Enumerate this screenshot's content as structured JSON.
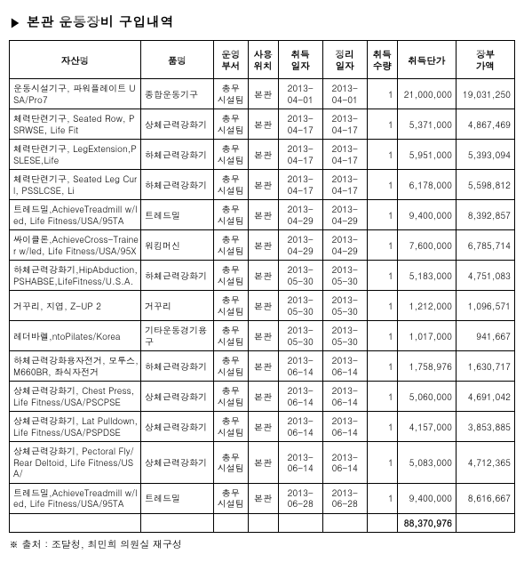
{
  "title": "본관 운동장비 구입내역",
  "marker": "▶",
  "headers": {
    "name": "자산명",
    "part": "품명",
    "dept": "운영\n부서",
    "loc": "사용\n위치",
    "acq_date": "취득\n일자",
    "sort_date": "정리\n일자",
    "qty": "취득\n수량",
    "unit_price": "취득단가",
    "book_value": "장부\n가액"
  },
  "rows": [
    {
      "name": "운동시설기구, 파워플레이트 USA/Pro7",
      "part": "종합운동기구",
      "dept": "총무\n시설팀",
      "loc": "본관",
      "d1": "2013-\n04-01",
      "d2": "2013-\n04-01",
      "qty": "1",
      "unit": "21,000,000",
      "book": "19,031,250"
    },
    {
      "name": "체력단련기구, Seated Row, PSRWSE, Life Fit",
      "part": "상체근력강화기",
      "dept": "총무\n시설팀",
      "loc": "본관",
      "d1": "2013-\n04-17",
      "d2": "2013-\n04-17",
      "qty": "1",
      "unit": "5,371,000",
      "book": "4,867,469"
    },
    {
      "name": "체력단련기구, LegExtension,PSLESE,Life",
      "part": "하체근력강화기",
      "dept": "총무\n시설팀",
      "loc": "본관",
      "d1": "2013-\n04-17",
      "d2": "2013-\n04-17",
      "qty": "1",
      "unit": "5,951,000",
      "book": "5,393,094"
    },
    {
      "name": "체력단련기구, Seated Leg Curl, PSSLCSE, Li",
      "part": "하체근력강화기",
      "dept": "총무\n시설팀",
      "loc": "본관",
      "d1": "2013-\n04-17",
      "d2": "2013-\n04-17",
      "qty": "1",
      "unit": "6,178,000",
      "book": "5,598,812"
    },
    {
      "name": "트레드밀,AchieveTreadmill w/led, Life Fitness/USA/95TA",
      "part": "트레드밀",
      "dept": "총무\n시설팀",
      "loc": "본관",
      "d1": "2013-\n04-29",
      "d2": "2013-\n04-29",
      "qty": "1",
      "unit": "9,400,000",
      "book": "8,392,857"
    },
    {
      "name": "싸이클론,AchieveCross-Trainer w/led, Life   Fitness/USA/95X",
      "part": "워킹머신",
      "dept": "총무\n시설팀",
      "loc": "본관",
      "d1": "2013-\n04-29",
      "d2": "2013-\n04-29",
      "qty": "1",
      "unit": "7,600,000",
      "book": "6,785,714"
    },
    {
      "name": "하체근력강화기,HipAbduction,PSHABSE,LifeFitness/U.S.A.",
      "part": "하체근력강화기",
      "dept": "총무\n시설팀",
      "loc": "본관",
      "d1": "2013-\n05-30",
      "d2": "2013-\n05-30",
      "qty": "1",
      "unit": "5,183,000",
      "book": "4,751,083"
    },
    {
      "name": "거꾸리, 지엽, Z-UP 2",
      "part": "거꾸리",
      "dept": "총무\n시설팀",
      "loc": "본관",
      "d1": "2013-\n05-30",
      "d2": "2013-\n05-30",
      "qty": "1",
      "unit": "1,212,000",
      "book": "1,096,571"
    },
    {
      "name": "레더바렐,ntoPilates/Korea",
      "part": "기타운동경기용구",
      "dept": "총무\n시설팀",
      "loc": "본관",
      "d1": "2013-\n05-30",
      "d2": "2013-\n05-30",
      "qty": "1",
      "unit": "1,017,000",
      "book": "941,667"
    },
    {
      "name": "하체근력강화용자전거, 모투스, M660BR, 좌식자전거",
      "part": "하체근력강화기",
      "dept": "총무\n시설팀",
      "loc": "본관",
      "d1": "2013-\n06-14",
      "d2": "2013-\n06-14",
      "qty": "1",
      "unit": "1,758,976",
      "book": "1,630,717"
    },
    {
      "name": "상체근력강화기, Chest  Press, Life Fitness/USA/PSCPSE",
      "part": "상체근력강화기",
      "dept": "총무\n시설팀",
      "loc": "본관",
      "d1": "2013-\n06-14",
      "d2": "2013-\n06-14",
      "qty": "1",
      "unit": "5,060,000",
      "book": "4,691,042"
    },
    {
      "name": "상체근력강화기, Lat  Pulldown, Life Fitness/USA/PSPDSE",
      "part": "상체근력강화기",
      "dept": "총무\n시설팀",
      "loc": "본관",
      "d1": "2013-\n06-14",
      "d2": "2013-\n06-14",
      "qty": "1",
      "unit": "4,157,000",
      "book": "3,853,885"
    },
    {
      "name": "상체근력강화기, Pectoral Fly/Rear Deltoid, Life Fitness/USA/",
      "part": "상체근력강화기",
      "dept": "총무\n시설팀",
      "loc": "본관",
      "d1": "2013-\n06-14",
      "d2": "2013-\n06-14",
      "qty": "1",
      "unit": "5,083,000",
      "book": "4,712,365"
    },
    {
      "name": "트레드밀,AchieveTreadmill w/led, Life Fitness/USA/95TA",
      "part": "트레드밀",
      "dept": "총무\n시설팀",
      "loc": "본관",
      "d1": "2013-\n06-28",
      "d2": "2013-\n06-28",
      "qty": "1",
      "unit": "9,400,000",
      "book": "8,616,667"
    }
  ],
  "total_unit": "88,370,976",
  "source_label": "※ 출처 : 조달청, 최민희 의원실 재구성"
}
